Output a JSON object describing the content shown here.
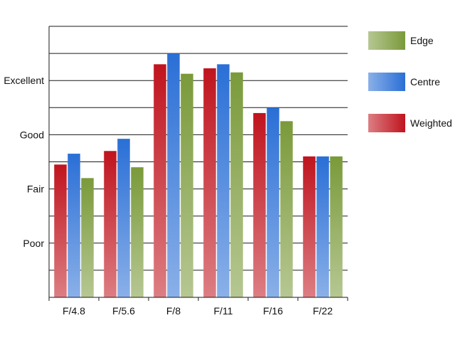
{
  "chart_data": {
    "type": "bar",
    "title": "",
    "xlabel": "",
    "ylabel": "",
    "categories": [
      "F/4.8",
      "F/5.6",
      "F/8",
      "F/11",
      "F/16",
      "F/22"
    ],
    "y_tick_labels": [
      "Poor",
      "Fair",
      "Good",
      "Excellent"
    ],
    "y_tick_values": [
      2,
      4,
      6,
      8
    ],
    "ylim": [
      0,
      10
    ],
    "grid": true,
    "legend_position": "right",
    "series": [
      {
        "name": "Weighted",
        "color": "#c0141e",
        "values": [
          4.9,
          5.4,
          8.6,
          8.45,
          6.8,
          5.2
        ]
      },
      {
        "name": "Centre",
        "color": "#2a6fd6",
        "values": [
          5.3,
          5.85,
          9.0,
          8.6,
          7.0,
          5.2
        ]
      },
      {
        "name": "Edge",
        "color": "#7a9a3a",
        "values": [
          4.4,
          4.8,
          8.25,
          8.3,
          6.5,
          5.2
        ]
      }
    ],
    "legend_order": [
      "Edge",
      "Centre",
      "Weighted"
    ]
  }
}
